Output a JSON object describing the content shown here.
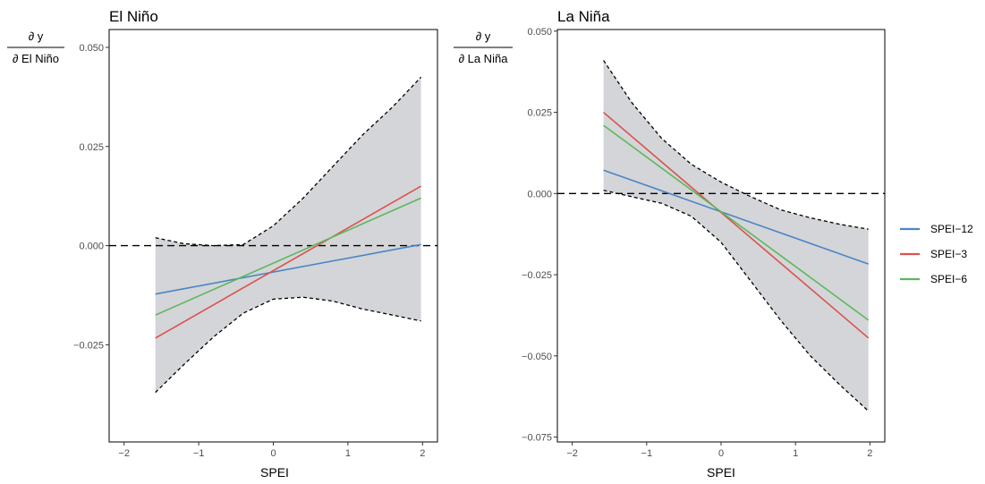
{
  "chart_data": [
    {
      "type": "line",
      "title": "El Niño",
      "xlabel": "SPEI",
      "ylabel": {
        "numerator": "∂ y",
        "denominator": "∂ El Niño"
      },
      "xlim": [
        -2.2,
        2.2
      ],
      "ylim": [
        -0.0495,
        0.0545
      ],
      "x_ticks": [
        -2,
        -1,
        0,
        1,
        2
      ],
      "x_tick_labels": [
        "−2",
        "−1",
        "0",
        "1",
        "2"
      ],
      "y_ticks": [
        -0.025,
        0,
        0.025,
        0.05
      ],
      "y_tick_labels": [
        "−0.025",
        "0.000",
        "0.025",
        "0.050"
      ],
      "reference_line_y": 0,
      "series": [
        {
          "name": "SPEI−12",
          "color": "#4a86c5",
          "x": [
            -1.58,
            1.98
          ],
          "y": [
            -0.0122,
            0.0003
          ]
        },
        {
          "name": "SPEI−3",
          "color": "#d9534f",
          "x": [
            -1.58,
            1.98
          ],
          "y": [
            -0.0233,
            0.015
          ]
        },
        {
          "name": "SPEI−6",
          "color": "#5cb85c",
          "x": [
            -1.58,
            1.98
          ],
          "y": [
            -0.0175,
            0.012
          ]
        }
      ],
      "confidence_band": {
        "x": [
          -1.58,
          -1.2,
          -0.8,
          -0.4,
          0,
          0.4,
          0.8,
          1.2,
          1.6,
          1.98
        ],
        "upper": [
          0.002,
          0.0005,
          0.0,
          0.0003,
          0.005,
          0.012,
          0.02,
          0.028,
          0.035,
          0.0425
        ],
        "lower": [
          -0.037,
          -0.03,
          -0.023,
          -0.017,
          -0.0135,
          -0.013,
          -0.014,
          -0.016,
          -0.0175,
          -0.019
        ]
      }
    },
    {
      "type": "line",
      "title": "La Niña",
      "xlabel": "SPEI",
      "ylabel": {
        "numerator": "∂ y",
        "denominator": "∂ La Niña"
      },
      "xlim": [
        -2.2,
        2.2
      ],
      "ylim": [
        -0.0765,
        0.0505
      ],
      "x_ticks": [
        -2,
        -1,
        0,
        1,
        2
      ],
      "x_tick_labels": [
        "−2",
        "−1",
        "0",
        "1",
        "2"
      ],
      "y_ticks": [
        -0.075,
        -0.05,
        -0.025,
        0,
        0.025,
        0.05
      ],
      "y_tick_labels": [
        "−0.075",
        "−0.050",
        "−0.025",
        "0.000",
        "0.025",
        "0.050"
      ],
      "reference_line_y": 0,
      "series": [
        {
          "name": "SPEI−12",
          "color": "#4a86c5",
          "x": [
            -1.58,
            1.98
          ],
          "y": [
            0.0072,
            -0.0217
          ]
        },
        {
          "name": "SPEI−3",
          "color": "#d9534f",
          "x": [
            -1.58,
            1.98
          ],
          "y": [
            0.025,
            -0.0445
          ]
        },
        {
          "name": "SPEI−6",
          "color": "#5cb85c",
          "x": [
            -1.58,
            1.98
          ],
          "y": [
            0.021,
            -0.039
          ]
        }
      ],
      "confidence_band": {
        "x": [
          -1.58,
          -1.2,
          -0.8,
          -0.4,
          0,
          0.4,
          0.8,
          1.2,
          1.6,
          1.98
        ],
        "upper": [
          0.041,
          0.028,
          0.017,
          0.009,
          0.0035,
          -0.001,
          -0.005,
          -0.0075,
          -0.0095,
          -0.011
        ],
        "lower": [
          0.001,
          -0.001,
          -0.003,
          -0.007,
          -0.015,
          -0.027,
          -0.039,
          -0.05,
          -0.059,
          -0.067
        ]
      }
    }
  ],
  "legend": {
    "position": "right",
    "items": [
      {
        "label": "SPEI−12",
        "color": "#4a86c5"
      },
      {
        "label": "SPEI−3",
        "color": "#d9534f"
      },
      {
        "label": "SPEI−6",
        "color": "#5cb85c"
      }
    ]
  }
}
